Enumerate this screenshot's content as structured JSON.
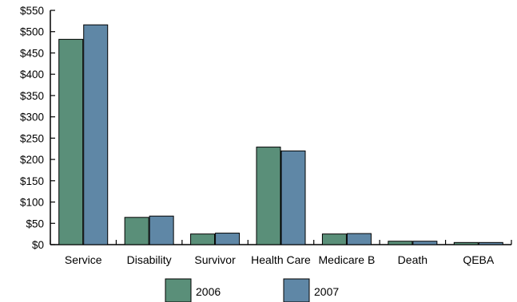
{
  "chart_data": {
    "type": "bar",
    "title": "",
    "xlabel": "",
    "ylabel": "",
    "ylim": [
      0,
      550
    ],
    "y_ticks": [
      0,
      50,
      100,
      150,
      200,
      250,
      300,
      350,
      400,
      450,
      500,
      550
    ],
    "y_tick_labels": [
      "$0",
      "$50",
      "$100",
      "$150",
      "$200",
      "$250",
      "$300",
      "$350",
      "$400",
      "$450",
      "$500",
      "$550"
    ],
    "categories": [
      "Service",
      "Disability",
      "Survivor",
      "Health Care",
      "Medicare B",
      "Death",
      "QEBA"
    ],
    "series": [
      {
        "name": "2006",
        "color": "#5a8f79",
        "values": [
          482,
          64,
          25,
          229,
          25,
          8,
          5
        ]
      },
      {
        "name": "2007",
        "color": "#5f87a6",
        "values": [
          516,
          67,
          27,
          220,
          26,
          8,
          5
        ]
      }
    ],
    "grid": false,
    "legend_position": "bottom"
  }
}
